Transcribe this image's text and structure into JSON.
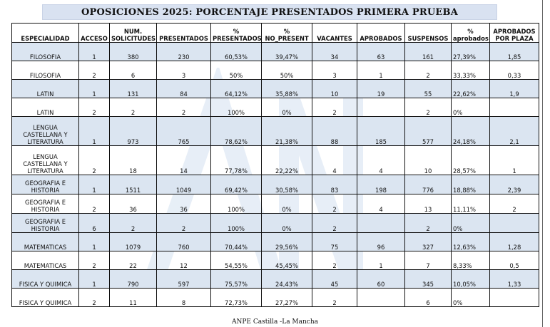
{
  "title": "OPOSICIONES 2025: PORCENTAJE PRESENTADOS PRIMERA PRUEBA",
  "footer": "ANPE Castilla -La Mancha",
  "colors": {
    "row_shade": "#dbe5f1",
    "title_bg": "#d9e2f1"
  },
  "headers": {
    "especialidad": "ESPECIALIDAD",
    "acceso": "ACCESO",
    "solicitudes": "NUM. SOLICITUDES",
    "presentados": "PRESENTADOS",
    "pct_presentados": "% PRESENTADOS",
    "pct_no_present": "% NO_PRESENT",
    "vacantes": "VACANTES",
    "aprobados": "APROBADOS",
    "suspensos": "SUSPENSOS",
    "pct_aprobados": "% aprobados",
    "aprobados_plaza": "APROBADOS POR PLAZA"
  },
  "rows": [
    {
      "especialidad": "FILOSOFIA",
      "acceso": "1",
      "solicitudes": "380",
      "presentados": "230",
      "pct_presentados": "60,53%",
      "pct_no_present": "39,47%",
      "vacantes": "34",
      "aprobados": "63",
      "suspensos": "161",
      "pct_aprobados": "27,39%",
      "aprobados_plaza": "1,85"
    },
    {
      "especialidad": "FILOSOFIA",
      "acceso": "2",
      "solicitudes": "6",
      "presentados": "3",
      "pct_presentados": "50%",
      "pct_no_present": "50%",
      "vacantes": "3",
      "aprobados": "1",
      "suspensos": "2",
      "pct_aprobados": "33,33%",
      "aprobados_plaza": "0,33"
    },
    {
      "especialidad": "LATIN",
      "acceso": "1",
      "solicitudes": "131",
      "presentados": "84",
      "pct_presentados": "64,12%",
      "pct_no_present": "35,88%",
      "vacantes": "10",
      "aprobados": "19",
      "suspensos": "55",
      "pct_aprobados": "22,62%",
      "aprobados_plaza": "1,9"
    },
    {
      "especialidad": "LATIN",
      "acceso": "2",
      "solicitudes": "2",
      "presentados": "2",
      "pct_presentados": "100%",
      "pct_no_present": "0%",
      "vacantes": "2",
      "aprobados": "",
      "suspensos": "2",
      "pct_aprobados": "0%",
      "aprobados_plaza": ""
    },
    {
      "especialidad": "LENGUA CASTELLANA Y LITERATURA",
      "acceso": "1",
      "solicitudes": "973",
      "presentados": "765",
      "pct_presentados": "78,62%",
      "pct_no_present": "21,38%",
      "vacantes": "88",
      "aprobados": "185",
      "suspensos": "577",
      "pct_aprobados": "24,18%",
      "aprobados_plaza": "2,1"
    },
    {
      "especialidad": "LENGUA CASTELLANA Y LITERATURA",
      "acceso": "2",
      "solicitudes": "18",
      "presentados": "14",
      "pct_presentados": "77,78%",
      "pct_no_present": "22,22%",
      "vacantes": "4",
      "aprobados": "4",
      "suspensos": "10",
      "pct_aprobados": "28,57%",
      "aprobados_plaza": "1"
    },
    {
      "especialidad": "GEOGRAFIA E HISTORIA",
      "acceso": "1",
      "solicitudes": "1511",
      "presentados": "1049",
      "pct_presentados": "69,42%",
      "pct_no_present": "30,58%",
      "vacantes": "83",
      "aprobados": "198",
      "suspensos": "776",
      "pct_aprobados": "18,88%",
      "aprobados_plaza": "2,39"
    },
    {
      "especialidad": "GEOGRAFIA E HISTORIA",
      "acceso": "2",
      "solicitudes": "36",
      "presentados": "36",
      "pct_presentados": "100%",
      "pct_no_present": "0%",
      "vacantes": "2",
      "aprobados": "4",
      "suspensos": "13",
      "pct_aprobados": "11,11%",
      "aprobados_plaza": "2"
    },
    {
      "especialidad": "GEOGRAFIA E HISTORIA",
      "acceso": "6",
      "solicitudes": "2",
      "presentados": "2",
      "pct_presentados": "100%",
      "pct_no_present": "0%",
      "vacantes": "2",
      "aprobados": "",
      "suspensos": "2",
      "pct_aprobados": "0%",
      "aprobados_plaza": ""
    },
    {
      "especialidad": "MATEMATICAS",
      "acceso": "1",
      "solicitudes": "1079",
      "presentados": "760",
      "pct_presentados": "70,44%",
      "pct_no_present": "29,56%",
      "vacantes": "75",
      "aprobados": "96",
      "suspensos": "327",
      "pct_aprobados": "12,63%",
      "aprobados_plaza": "1,28"
    },
    {
      "especialidad": "MATEMATICAS",
      "acceso": "2",
      "solicitudes": "22",
      "presentados": "12",
      "pct_presentados": "54,55%",
      "pct_no_present": "45,45%",
      "vacantes": "2",
      "aprobados": "1",
      "suspensos": "7",
      "pct_aprobados": "8,33%",
      "aprobados_plaza": "0,5"
    },
    {
      "especialidad": "FISICA Y QUIMICA",
      "acceso": "1",
      "solicitudes": "790",
      "presentados": "597",
      "pct_presentados": "75,57%",
      "pct_no_present": "24,43%",
      "vacantes": "45",
      "aprobados": "60",
      "suspensos": "345",
      "pct_aprobados": "10,05%",
      "aprobados_plaza": "1,33"
    },
    {
      "especialidad": "FISICA Y QUIMICA",
      "acceso": "2",
      "solicitudes": "11",
      "presentados": "8",
      "pct_presentados": "72,73%",
      "pct_no_present": "27,27%",
      "vacantes": "2",
      "aprobados": "",
      "suspensos": "6",
      "pct_aprobados": "0%",
      "aprobados_plaza": ""
    }
  ]
}
